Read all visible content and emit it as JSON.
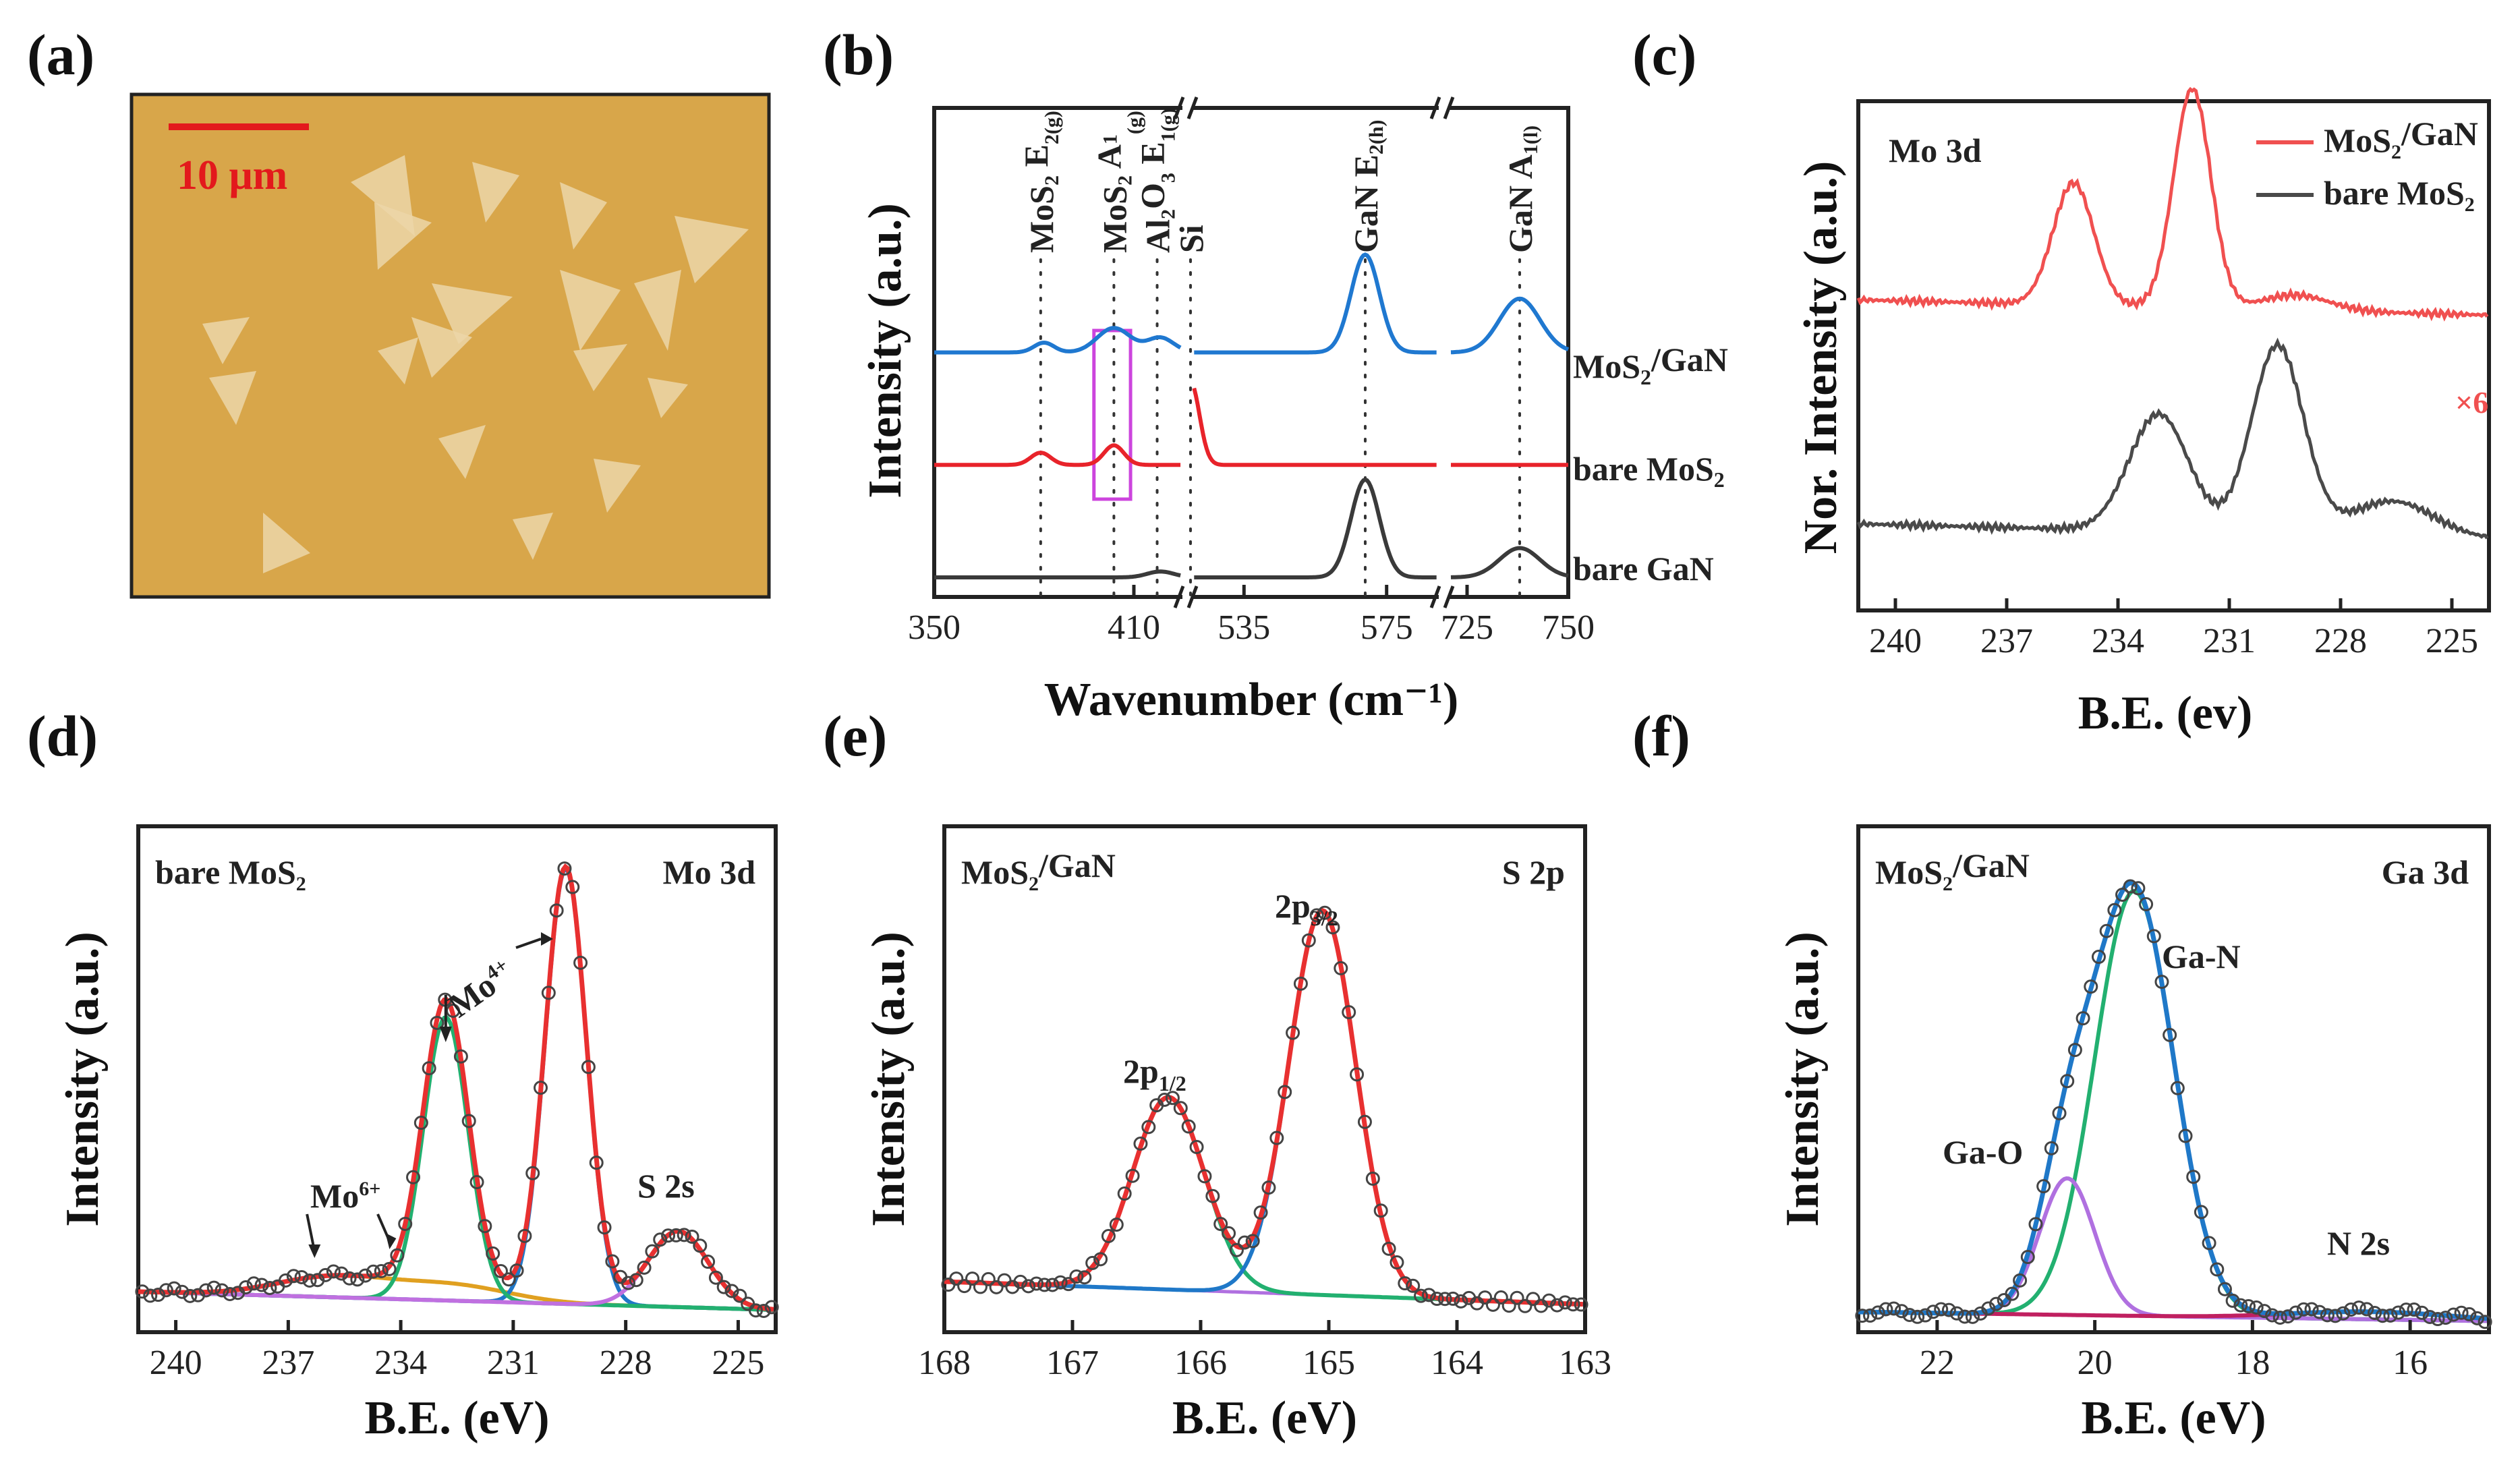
{
  "chart_data": [
    {
      "panel": "(a)",
      "type": "image",
      "scale_bar": "10 μm",
      "colors": {
        "background": "#d8a64a",
        "flakes": "#ecd6a8",
        "scale_bar": "#e3191c"
      }
    },
    {
      "panel": "(b)",
      "type": "line",
      "title": "",
      "xlabel": "Wavenumber (cm⁻¹)",
      "ylabel": "Intensity (a.u.)",
      "xlim_segments": [
        [
          350,
          425
        ],
        [
          520,
          590
        ],
        [
          720,
          750
        ]
      ],
      "x_ticks": [
        "350",
        "410",
        "535",
        "575",
        "725",
        "750"
      ],
      "x_tick_values": [
        350,
        410,
        535,
        575,
        725,
        750
      ],
      "break_positions": [
        425,
        590
      ],
      "peak_positions": [
        382,
        404,
        417,
        520,
        569,
        738
      ],
      "peak_labels": [
        {
          "base": "MoS",
          "sub": "2",
          "rest": " E",
          "sub2": "2(g)",
          "sup": ""
        },
        {
          "base": "MoS",
          "sub": "2",
          "rest": " A",
          "sub2": "(g)",
          "sup": "1"
        },
        {
          "base": "Al",
          "sub": "2",
          "rest": "O",
          "sub2": "3",
          "tail": " E",
          "sub3": "1(g)",
          "sup": ""
        },
        {
          "base": "Si"
        },
        {
          "base": "GaN E",
          "sub": "2(h)"
        },
        {
          "base": "GaN A",
          "sub": "1(l)"
        }
      ],
      "series": [
        {
          "name": "MoS2/GaN",
          "color": "#1f78d0",
          "offset": 0.5,
          "peaks": [
            {
              "x": 383,
              "h": 0.02,
              "w": 3
            },
            {
              "x": 404,
              "h": 0.05,
              "w": 5
            },
            {
              "x": 418,
              "h": 0.03,
              "w": 4
            },
            {
              "x": 569,
              "h": 0.2,
              "w": 4
            },
            {
              "x": 738,
              "h": 0.11,
              "w": 5
            }
          ]
        },
        {
          "name": "bare MoS2",
          "color": "#e8232a",
          "offset": 0.27,
          "peaks": [
            {
              "x": 382,
              "h": 0.025,
              "w": 3
            },
            {
              "x": 404,
              "h": 0.04,
              "w": 3
            },
            {
              "x": 520,
              "h": 0.17,
              "w": 2.5
            }
          ]
        },
        {
          "name": "bare GaN",
          "color": "#3a3a3a",
          "offset": 0.04,
          "peaks": [
            {
              "x": 418,
              "h": 0.012,
              "w": 4
            },
            {
              "x": 569,
              "h": 0.2,
              "w": 4
            },
            {
              "x": 738,
              "h": 0.06,
              "w": 5
            }
          ]
        }
      ],
      "legend": [
        {
          "base": "MoS",
          "sub": "2",
          "rest": "/GaN",
          "color": "#4a7fe0"
        },
        {
          "base": "bare MoS",
          "sub": "2",
          "rest": "",
          "color": "#e8232a"
        },
        {
          "base": "bare GaN",
          "sub": "",
          "rest": "",
          "color": "#222222"
        }
      ],
      "highlight_box": {
        "x_range": [
          398,
          409
        ],
        "color": "#cc44dd"
      }
    },
    {
      "panel": "(c)",
      "type": "line",
      "title": "Mo 3d",
      "xlabel": "B.E. (ev)",
      "ylabel": "Nor. Intensity (a.u.)",
      "xlim": [
        241,
        224
      ],
      "x_ticks": [
        240,
        237,
        234,
        231,
        228,
        225
      ],
      "multiplier_label": "×6",
      "series": [
        {
          "name": "MoS2/GaN",
          "color": "#f05050",
          "baseline": 0.58,
          "slope": 0.03,
          "peaks": [
            {
              "x": 235.2,
              "h": 0.24,
              "w": 0.55
            },
            {
              "x": 232.0,
              "h": 0.43,
              "w": 0.5
            },
            {
              "x": 229.2,
              "h": 0.03,
              "w": 0.9
            }
          ]
        },
        {
          "name": "bare MoS2",
          "color": "#4a4a4a",
          "baseline": 0.14,
          "slope": 0.03,
          "peaks": [
            {
              "x": 232.9,
              "h": 0.23,
              "w": 0.8
            },
            {
              "x": 229.7,
              "h": 0.37,
              "w": 0.7
            },
            {
              "x": 226.6,
              "h": 0.07,
              "w": 1.1
            }
          ]
        }
      ],
      "legend": [
        {
          "base": "MoS",
          "sub": "2",
          "rest": "/GaN",
          "color": "#f05050"
        },
        {
          "base": "bare MoS",
          "sub": "2",
          "rest": "",
          "color": "#4a4a4a"
        }
      ]
    },
    {
      "panel": "(d)",
      "type": "line",
      "title": "Mo 3d",
      "sample": {
        "base": "bare MoS",
        "sub": "2"
      },
      "xlabel": "B.E. (eV)",
      "ylabel": "Intensity (a.u.)",
      "xlim": [
        241,
        224
      ],
      "x_ticks": [
        240,
        237,
        234,
        231,
        228,
        225
      ],
      "baseline": 0.08,
      "annotations": [
        {
          "text": "Mo",
          "sup": "6+"
        },
        {
          "text": "Mo",
          "sup": "4+"
        },
        {
          "text": "S 2s"
        }
      ],
      "components": [
        {
          "name": "Mo6+",
          "color": "#e0a020",
          "peaks": [
            {
              "x": 235.8,
              "h": 0.04,
              "w": 1.5
            },
            {
              "x": 232.6,
              "h": 0.03,
              "w": 1.5
            }
          ]
        },
        {
          "name": "Mo4+ 3d5/2",
          "color": "#1f78c8",
          "peaks": [
            {
              "x": 229.6,
              "h": 0.86,
              "w": 0.55
            }
          ]
        },
        {
          "name": "Mo4+ 3d3/2",
          "color": "#22b070",
          "peaks": [
            {
              "x": 232.8,
              "h": 0.56,
              "w": 0.6
            }
          ]
        },
        {
          "name": "S 2s",
          "color": "#c070e0",
          "peaks": [
            {
              "x": 226.6,
              "h": 0.15,
              "w": 0.8
            }
          ]
        }
      ],
      "colors": {
        "envelope": "#e83030",
        "data": "#444444",
        "background": "#909090"
      }
    },
    {
      "panel": "(e)",
      "type": "line",
      "title": "S 2p",
      "sample": {
        "base": "MoS",
        "sub": "2",
        "rest": "/GaN"
      },
      "xlabel": "B.E. (eV)",
      "ylabel": "Intensity (a.u.)",
      "xlim": [
        168,
        163
      ],
      "x_ticks": [
        168,
        167,
        166,
        165,
        164,
        163
      ],
      "baseline": 0.1,
      "annotations": [
        {
          "text": "2p",
          "sub": "1/2"
        },
        {
          "text": "2p",
          "sub": "3/2"
        }
      ],
      "components": [
        {
          "name": "2p1/2",
          "color": "#22b070",
          "peaks": [
            {
              "x": 166.25,
              "h": 0.38,
              "w": 0.28
            }
          ]
        },
        {
          "name": "2p3/2",
          "color": "#1f78c8",
          "peaks": [
            {
              "x": 165.05,
              "h": 0.76,
              "w": 0.26
            }
          ]
        }
      ],
      "colors": {
        "envelope": "#e83030",
        "data": "#444444",
        "background": "#b070e0"
      }
    },
    {
      "panel": "(f)",
      "type": "line",
      "title": "Ga 3d",
      "sample": {
        "base": "MoS",
        "sub": "2",
        "rest": "/GaN"
      },
      "xlabel": "B.E. (eV)",
      "ylabel": "Intensity (a.u.)",
      "xlim": [
        23,
        15
      ],
      "x_ticks": [
        22,
        20,
        18,
        16
      ],
      "baseline": 0.04,
      "annotations": [
        {
          "text": "Ga-N"
        },
        {
          "text": "Ga-O"
        },
        {
          "text": "N 2s"
        }
      ],
      "components": [
        {
          "name": "Ga-N",
          "color": "#22b070",
          "peaks": [
            {
              "x": 19.5,
              "h": 0.84,
              "w": 0.5
            }
          ]
        },
        {
          "name": "Ga-O",
          "color": "#b070e0",
          "peaks": [
            {
              "x": 20.35,
              "h": 0.27,
              "w": 0.35
            }
          ]
        },
        {
          "name": "N 2s",
          "color": "#c02060",
          "peaks": [
            {
              "x": 16.5,
              "h": 0.015,
              "w": 1.0
            }
          ]
        }
      ],
      "colors": {
        "envelope": "#1f78c8",
        "data": "#444444",
        "background": "#c02060"
      }
    }
  ]
}
